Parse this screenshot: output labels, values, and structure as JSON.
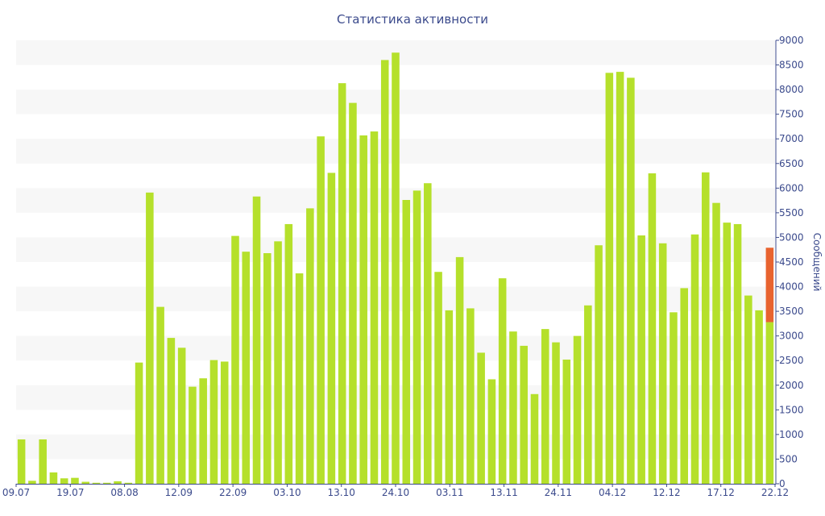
{
  "chart_data": {
    "type": "bar",
    "title": "Статистика активности",
    "ylabel": "Сообщений",
    "ylim": [
      0,
      9000
    ],
    "yticks": [
      0,
      500,
      1000,
      1500,
      2000,
      2500,
      3000,
      3500,
      4000,
      4500,
      5000,
      5500,
      6000,
      6500,
      7000,
      7500,
      8000,
      8500,
      9000
    ],
    "xtick_labels": [
      "09.07",
      "19.07",
      "08.08",
      "12.09",
      "22.09",
      "03.10",
      "13.10",
      "24.10",
      "03.11",
      "13.11",
      "24.11",
      "04.12",
      "12.12",
      "17.12",
      "22.12"
    ],
    "grid": "horizontal bands",
    "colors": {
      "bar": "#b5e02b",
      "highlight": "#e8632f",
      "axis": "#3b4a8c",
      "band": "#f7f7f7"
    },
    "values": [
      900,
      60,
      900,
      230,
      110,
      120,
      40,
      20,
      20,
      50,
      20,
      2460,
      5910,
      3590,
      2960,
      2760,
      1970,
      2140,
      2510,
      2480,
      5030,
      4710,
      5830,
      4680,
      4920,
      5270,
      4270,
      5590,
      7050,
      6310,
      8130,
      7730,
      7070,
      7150,
      8600,
      8750,
      5760,
      5950,
      6100,
      4300,
      3520,
      4600,
      3560,
      2660,
      2120,
      4170,
      3090,
      2800,
      1820,
      3140,
      2870,
      2520,
      3000,
      3620,
      4840,
      8340,
      8360,
      8240,
      5040,
      6300,
      4880,
      3480,
      3970,
      5060,
      6320,
      5700,
      5300,
      5270,
      3820,
      3520,
      3280
    ],
    "highlight_last_extra": 1510
  }
}
